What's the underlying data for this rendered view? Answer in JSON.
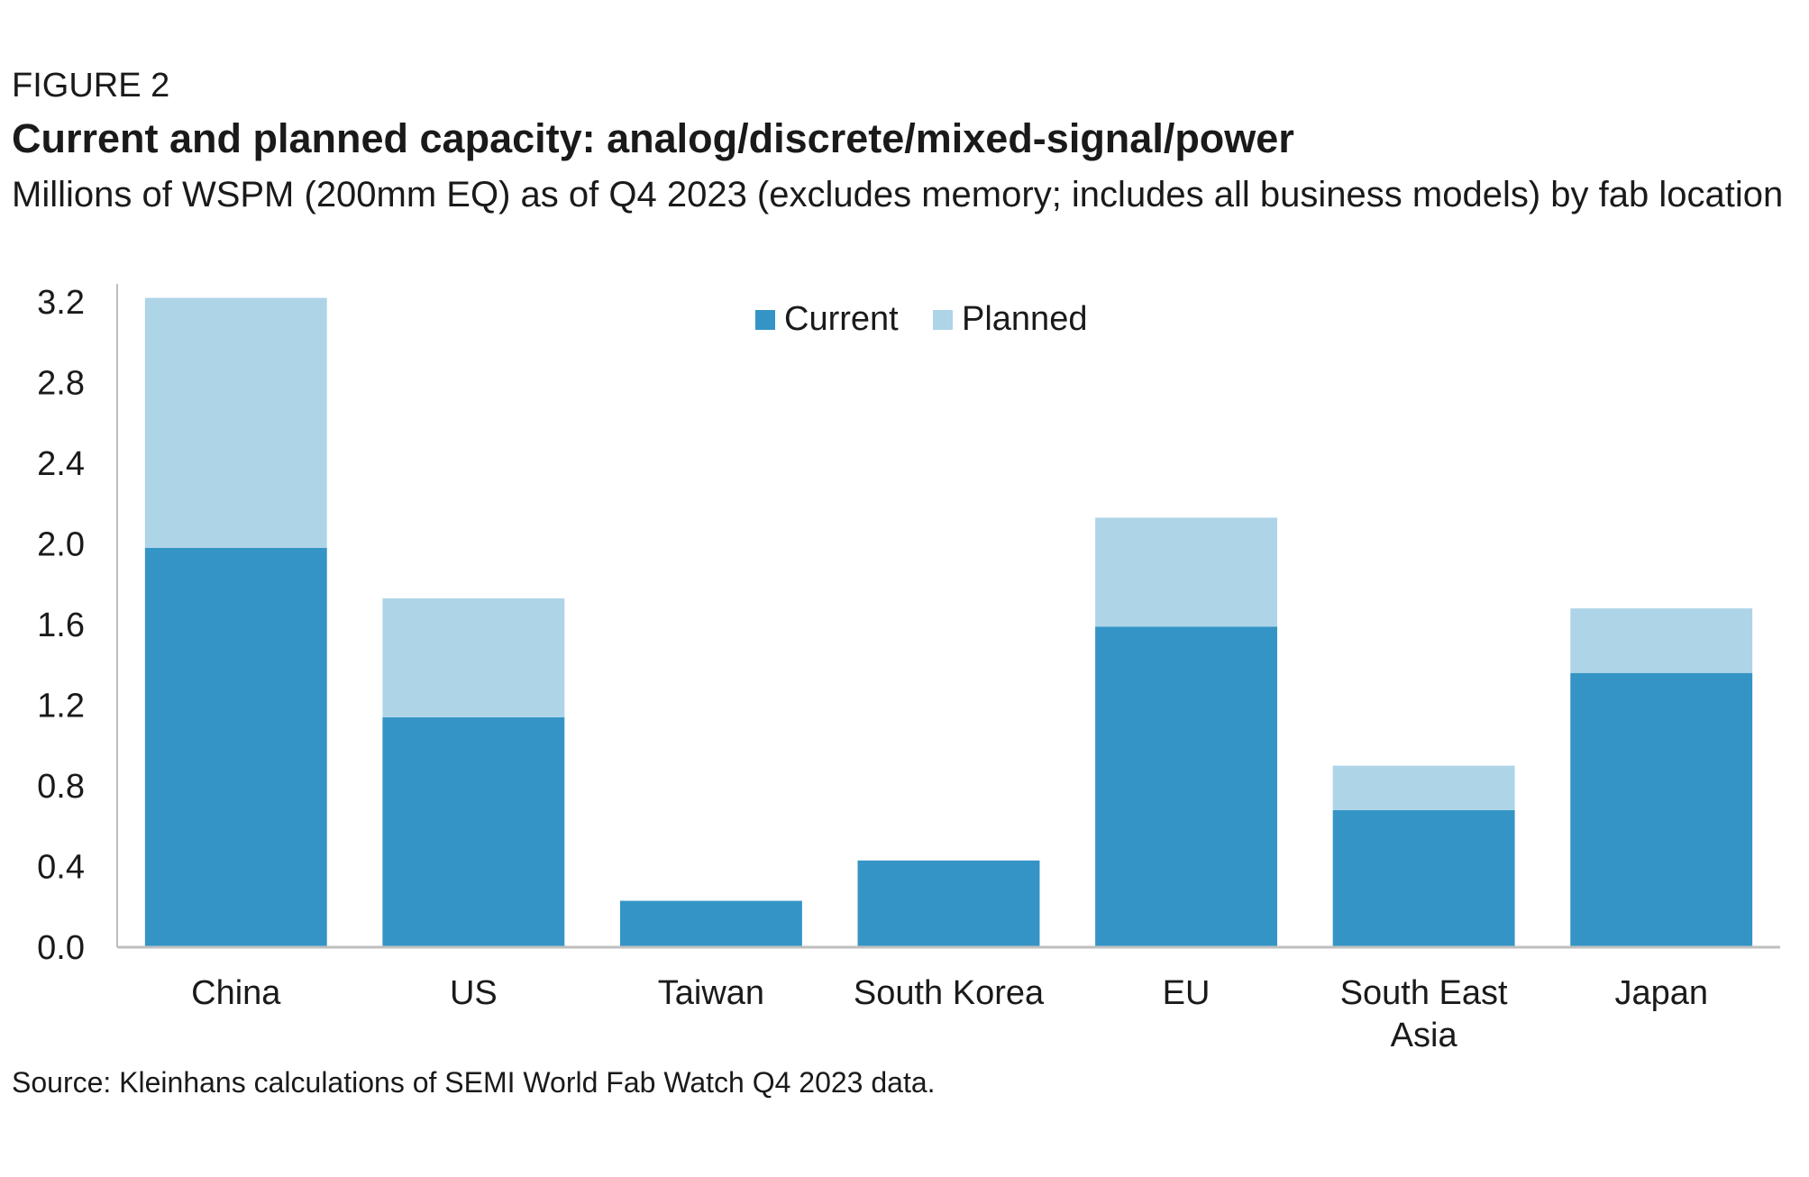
{
  "figure": {
    "label": "FIGURE 2",
    "title": "Current and planned capacity: analog/discrete/mixed-signal/power",
    "subtitle": "Millions of WSPM (200mm EQ) as of Q4 2023 (excludes memory; includes all business models) by fab location",
    "source": "Source: Kleinhans calculations of SEMI World Fab Watch Q4 2023 data."
  },
  "chart_data": {
    "type": "bar",
    "stacked": true,
    "categories": [
      [
        "China"
      ],
      [
        "US"
      ],
      [
        "Taiwan"
      ],
      [
        "South Korea"
      ],
      [
        "EU"
      ],
      [
        "South East",
        "Asia"
      ],
      [
        "Japan"
      ]
    ],
    "series": [
      {
        "name": "Current",
        "color": "#3494C5",
        "values": [
          1.98,
          1.14,
          0.23,
          0.43,
          1.59,
          0.68,
          1.36
        ]
      },
      {
        "name": "Planned",
        "color": "#AED4E8",
        "values": [
          1.24,
          0.59,
          0.0,
          0.0,
          0.54,
          0.22,
          0.32
        ]
      }
    ],
    "ylim": [
      0,
      3.2
    ],
    "yticks": [
      "0.0",
      "0.4",
      "0.8",
      "1.2",
      "1.6",
      "2.0",
      "2.4",
      "2.8",
      "3.2"
    ],
    "grid": false,
    "legend": {
      "position": "top-center"
    }
  }
}
